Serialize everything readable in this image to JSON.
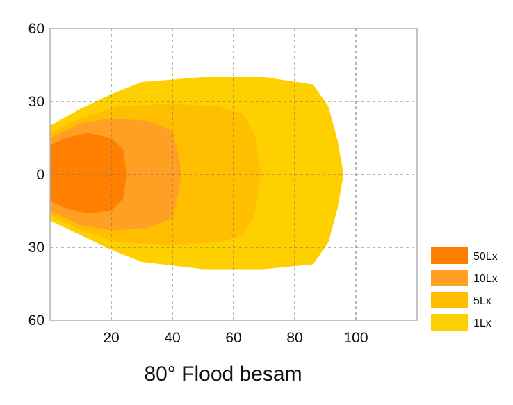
{
  "chart_data": {
    "type": "area",
    "title": "80° Flood besam",
    "x_tick_labels": [
      "20",
      "40",
      "60",
      "80",
      "100"
    ],
    "x_ticks": [
      20,
      40,
      60,
      80,
      100
    ],
    "y_tick_labels": [
      "60",
      "30",
      "0",
      "30",
      "60"
    ],
    "y_ticks": [
      60,
      30,
      0,
      -30,
      -60
    ],
    "xlim": [
      0,
      120
    ],
    "ylim": [
      -60,
      60
    ],
    "grid": true,
    "legend_position": "bottom-right",
    "series": [
      {
        "name": "1Lx",
        "color": "#FFD000",
        "points": [
          [
            0,
            20
          ],
          [
            10,
            27
          ],
          [
            20,
            33
          ],
          [
            30,
            38
          ],
          [
            50,
            40
          ],
          [
            70,
            40
          ],
          [
            86,
            37
          ],
          [
            91,
            28
          ],
          [
            94,
            14
          ],
          [
            96,
            0
          ],
          [
            94,
            -14
          ],
          [
            91,
            -28
          ],
          [
            86,
            -37
          ],
          [
            70,
            -39
          ],
          [
            50,
            -39
          ],
          [
            30,
            -36
          ],
          [
            20,
            -31
          ],
          [
            10,
            -25
          ],
          [
            0,
            -19
          ]
        ]
      },
      {
        "name": "5Lx",
        "color": "#FFBE00",
        "points": [
          [
            0,
            17
          ],
          [
            10,
            23
          ],
          [
            22,
            28
          ],
          [
            40,
            29
          ],
          [
            55,
            28
          ],
          [
            63,
            25
          ],
          [
            67,
            16
          ],
          [
            69,
            0
          ],
          [
            67,
            -16
          ],
          [
            63,
            -25
          ],
          [
            55,
            -28
          ],
          [
            40,
            -29
          ],
          [
            22,
            -28
          ],
          [
            10,
            -23
          ],
          [
            0,
            -17
          ]
        ]
      },
      {
        "name": "10Lx",
        "color": "#FFA024",
        "points": [
          [
            0,
            15
          ],
          [
            10,
            21
          ],
          [
            20,
            23
          ],
          [
            32,
            22
          ],
          [
            40,
            18
          ],
          [
            42,
            8
          ],
          [
            43,
            0
          ],
          [
            42,
            -8
          ],
          [
            40,
            -18
          ],
          [
            32,
            -22
          ],
          [
            20,
            -23
          ],
          [
            10,
            -21
          ],
          [
            0,
            -15
          ]
        ]
      },
      {
        "name": "50Lx",
        "color": "#FF7F00",
        "points": [
          [
            0,
            12
          ],
          [
            5,
            15
          ],
          [
            12,
            17
          ],
          [
            20,
            15
          ],
          [
            24,
            10
          ],
          [
            25,
            0
          ],
          [
            24,
            -10
          ],
          [
            20,
            -15
          ],
          [
            12,
            -16
          ],
          [
            5,
            -14
          ],
          [
            0,
            -11
          ]
        ]
      }
    ]
  }
}
